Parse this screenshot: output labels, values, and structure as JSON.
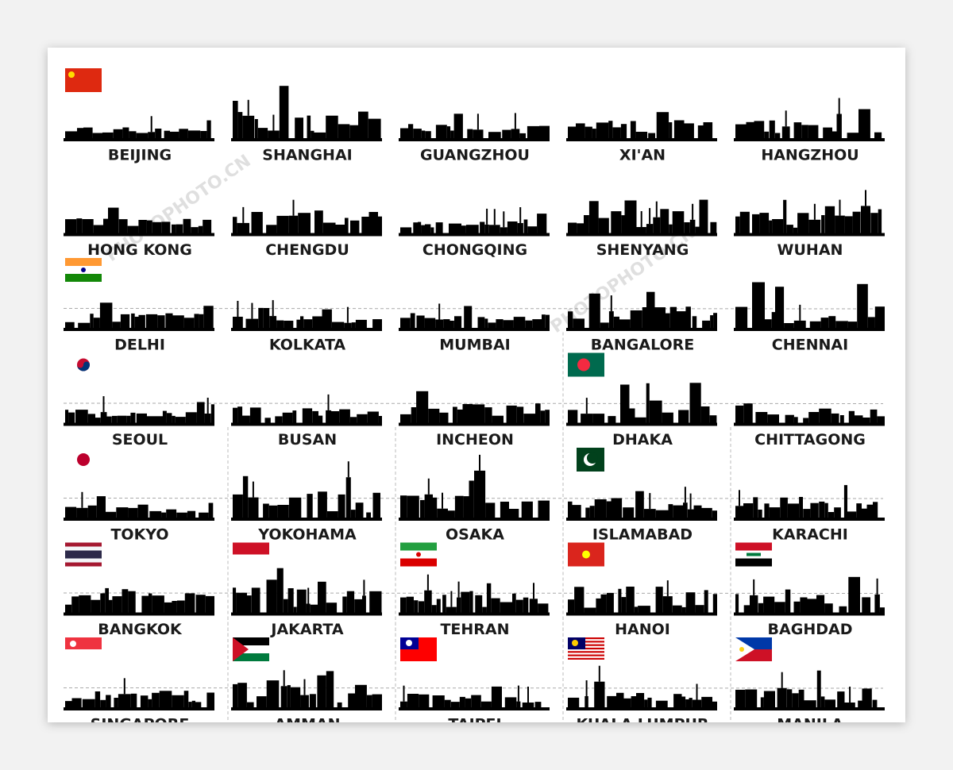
{
  "cities": [
    "BEIJING",
    "SHANGHAI",
    "GUANGZHOU",
    "XI'AN",
    "HANGZHOU",
    "HONG KONG",
    "CHENGDU",
    "CHONGQING",
    "SHENYANG",
    "WUHAN",
    "DELHI",
    "KOLKATA",
    "MUMBAI",
    "BANGALORE",
    "CHENNAI",
    "SEOUL",
    "BUSAN",
    "INCHEON",
    "DHAKA",
    "CHITTAGONG",
    "TOKYO",
    "YOKOHAMA",
    "OSAKA",
    "ISLAMABAD",
    "KARACHI",
    "BANGKOK",
    "JAKARTA",
    "TEHRAN",
    "HANOI",
    "BAGHDAD",
    "SINGAPORE",
    "AMMAN",
    "TAIPEI",
    "KUALA LUMPUR",
    "MANILA"
  ],
  "watermark": "PHOTOPHOTO.CN"
}
